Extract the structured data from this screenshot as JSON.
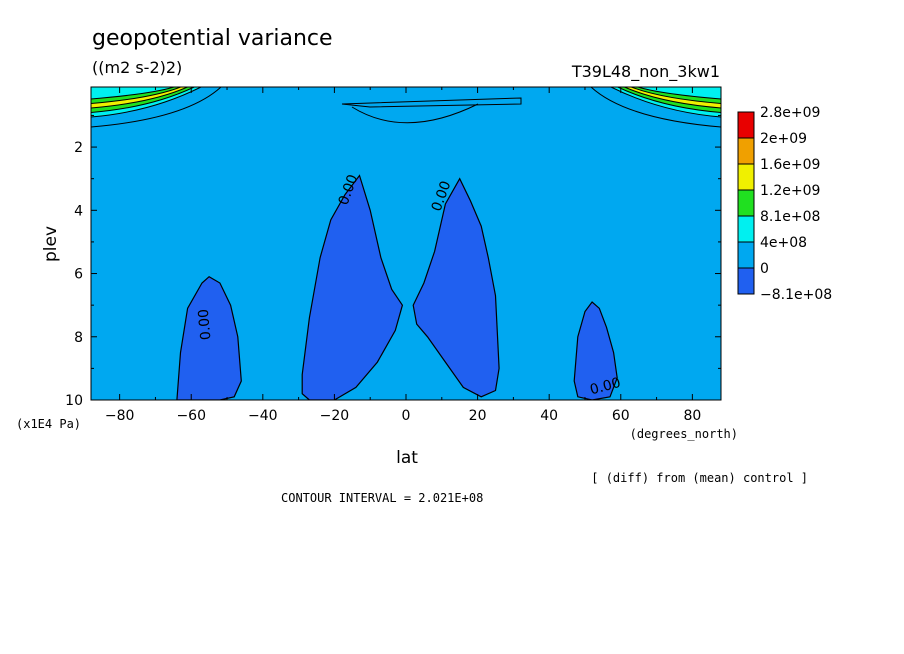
{
  "chart_data": {
    "type": "heatmap",
    "title": "geopotential variance",
    "units": "((m2 s-2)2)",
    "run_label": "T39L48_non_3kw1",
    "xlabel": "lat",
    "x_units": "(degrees_north)",
    "ylabel": "plev",
    "y_units": "(x1E4 Pa)",
    "xlim": [
      -88,
      88
    ],
    "ylim": [
      10,
      0.1
    ],
    "x_ticks": [
      -80,
      -60,
      -40,
      -20,
      0,
      20,
      40,
      60,
      80
    ],
    "y_ticks": [
      2,
      4,
      6,
      8,
      10
    ],
    "x_tick_labels": [
      "−80",
      "−60",
      "−40",
      "−20",
      "0",
      "20",
      "40",
      "60",
      "80"
    ],
    "y_tick_labels": [
      "2",
      "4",
      "6",
      "8",
      "10"
    ],
    "contour_interval_text": "CONTOUR INTERVAL = 2.021E+08",
    "note": "[ (diff) from (mean) control ]",
    "contour_label": "0.00",
    "colorbar": {
      "levels": [
        "2.8e+09",
        "2e+09",
        "1.6e+09",
        "1.2e+09",
        "8.1e+08",
        "4e+08",
        "0",
        "−8.1e+08"
      ],
      "colors": [
        "#e80000",
        "#f0a000",
        "#f0f000",
        "#20e020",
        "#00f0f0",
        "#00a8f0",
        "#2060f0"
      ]
    },
    "background_color": "#00a8f0",
    "negative_region_color": "#2060f0",
    "negative_regions": [
      {
        "name": "region-a",
        "lat": [
          -64,
          -46
        ],
        "plev_top": 6.1,
        "plev_bottom": 10,
        "outline": [
          [
            -64,
            10
          ],
          [
            -63,
            8.5
          ],
          [
            -61,
            7.1
          ],
          [
            -57,
            6.3
          ],
          [
            -55,
            6.1
          ],
          [
            -52,
            6.3
          ],
          [
            -49,
            7.0
          ],
          [
            -47,
            8.0
          ],
          [
            -46,
            9.4
          ],
          [
            -48,
            9.9
          ],
          [
            -52,
            10
          ]
        ]
      },
      {
        "name": "region-b",
        "lat": [
          -30,
          -1
        ],
        "plev_top": 2.9,
        "plev_bottom": 10,
        "outline": [
          [
            -29,
            9.8
          ],
          [
            -29,
            9.2
          ],
          [
            -27,
            7.4
          ],
          [
            -24,
            5.5
          ],
          [
            -21,
            4.3
          ],
          [
            -17,
            3.5
          ],
          [
            -13,
            2.9
          ],
          [
            -10,
            4.0
          ],
          [
            -7,
            5.5
          ],
          [
            -4,
            6.5
          ],
          [
            -1,
            7.0
          ],
          [
            -3,
            7.8
          ],
          [
            -8,
            8.8
          ],
          [
            -14,
            9.6
          ],
          [
            -20,
            10
          ],
          [
            -27,
            10
          ]
        ]
      },
      {
        "name": "region-c",
        "lat": [
          2,
          26
        ],
        "plev_top": 3.0,
        "plev_bottom": 9.9,
        "outline": [
          [
            2,
            7.0
          ],
          [
            5,
            6.3
          ],
          [
            8,
            5.3
          ],
          [
            11,
            3.8
          ],
          [
            15,
            3.0
          ],
          [
            18,
            3.7
          ],
          [
            21,
            4.5
          ],
          [
            23,
            5.5
          ],
          [
            25,
            6.7
          ],
          [
            26,
            9.0
          ],
          [
            25,
            9.7
          ],
          [
            21,
            9.9
          ],
          [
            16,
            9.6
          ],
          [
            11,
            8.8
          ],
          [
            6,
            8.0
          ],
          [
            3,
            7.6
          ]
        ]
      },
      {
        "name": "region-d",
        "lat": [
          47,
          59
        ],
        "plev_top": 6.9,
        "plev_bottom": 10,
        "outline": [
          [
            47,
            9.4
          ],
          [
            48,
            8.0
          ],
          [
            50,
            7.2
          ],
          [
            52,
            6.9
          ],
          [
            54,
            7.1
          ],
          [
            56,
            7.7
          ],
          [
            58,
            8.5
          ],
          [
            59,
            9.3
          ],
          [
            57,
            9.9
          ],
          [
            52,
            10
          ],
          [
            48,
            9.9
          ]
        ]
      }
    ],
    "contour_label_positions": [
      {
        "lat": -55,
        "plev": 7.6
      },
      {
        "lat": -15,
        "plev": 3.4
      },
      {
        "lat": 11,
        "plev": 3.6
      },
      {
        "lat": 56,
        "plev": 9.7
      }
    ]
  }
}
